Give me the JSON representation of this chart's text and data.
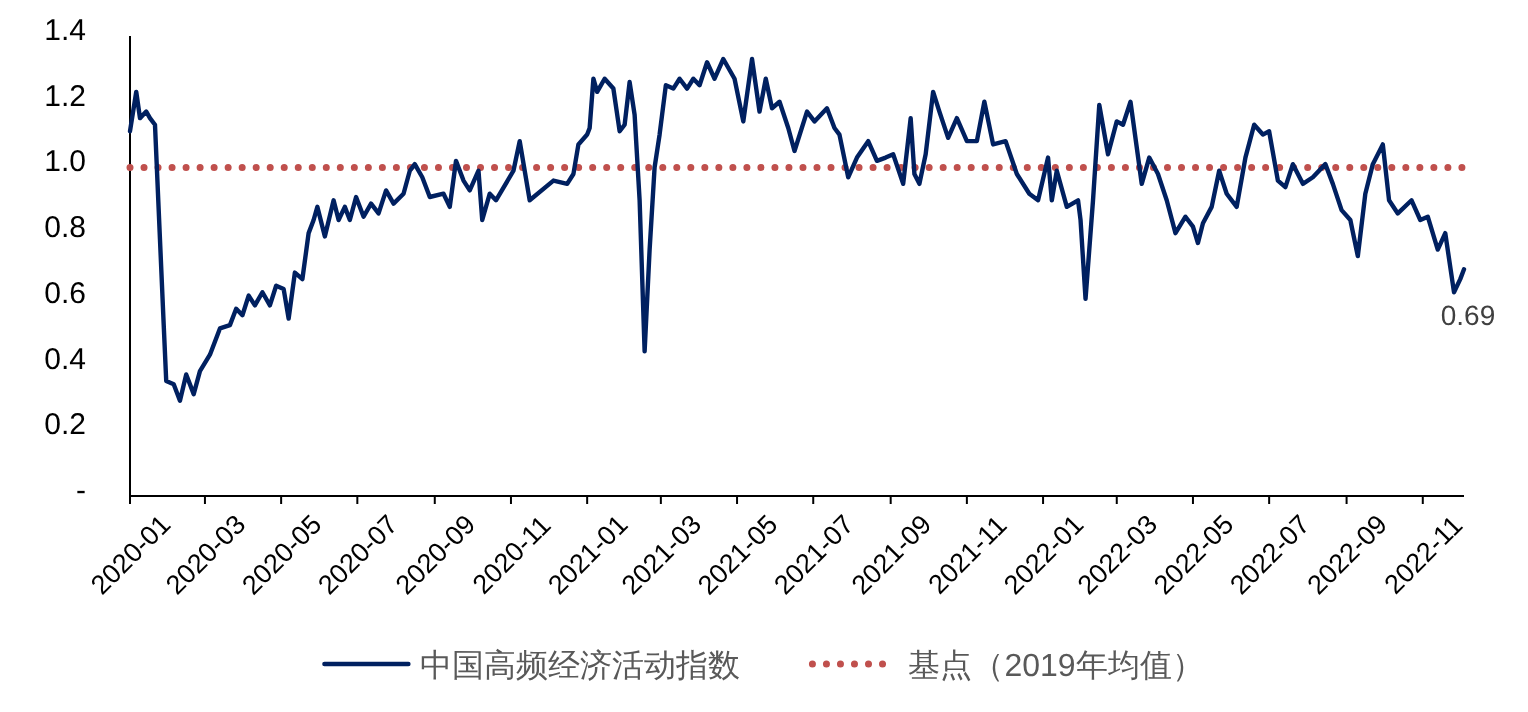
{
  "chart_data": {
    "type": "line",
    "x": [
      "2020-01-01",
      "2020-01-06",
      "2020-01-09",
      "2020-01-14",
      "2020-01-17",
      "2020-01-21",
      "2020-01-25",
      "2020-01-28",
      "2020-01-30",
      "2020-02-05",
      "2020-02-10",
      "2020-02-15",
      "2020-02-21",
      "2020-02-26",
      "2020-03-05",
      "2020-03-13",
      "2020-03-21",
      "2020-03-26",
      "2020-03-31",
      "2020-04-05",
      "2020-04-10",
      "2020-04-16",
      "2020-04-22",
      "2020-04-27",
      "2020-05-03",
      "2020-05-07",
      "2020-05-12",
      "2020-05-18",
      "2020-05-23",
      "2020-05-27",
      "2020-05-30",
      "2020-06-05",
      "2020-06-12",
      "2020-06-16",
      "2020-06-21",
      "2020-06-25",
      "2020-06-30",
      "2020-07-06",
      "2020-07-12",
      "2020-07-18",
      "2020-07-24",
      "2020-07-30",
      "2020-08-07",
      "2020-08-12",
      "2020-08-16",
      "2020-08-22",
      "2020-08-28",
      "2020-09-08",
      "2020-09-13",
      "2020-09-18",
      "2020-09-24",
      "2020-09-29",
      "2020-10-06",
      "2020-10-09",
      "2020-10-15",
      "2020-10-20",
      "2020-11-03",
      "2020-11-08",
      "2020-11-16",
      "2020-12-05",
      "2020-12-16",
      "2020-12-21",
      "2020-12-25",
      "2021-01-01",
      "2021-01-03",
      "2021-01-06",
      "2021-01-09",
      "2021-01-15",
      "2021-01-22",
      "2021-01-27",
      "2021-01-31",
      "2021-02-04",
      "2021-02-08",
      "2021-02-12",
      "2021-02-16",
      "2021-02-20",
      "2021-02-24",
      "2021-02-28",
      "2021-03-05",
      "2021-03-11",
      "2021-03-16",
      "2021-03-22",
      "2021-03-27",
      "2021-04-01",
      "2021-04-07",
      "2021-04-13",
      "2021-04-20",
      "2021-04-29",
      "2021-05-06",
      "2021-05-13",
      "2021-05-19",
      "2021-05-24",
      "2021-05-29",
      "2021-06-04",
      "2021-06-11",
      "2021-06-16",
      "2021-06-26",
      "2021-07-02",
      "2021-07-12",
      "2021-07-18",
      "2021-07-22",
      "2021-07-29",
      "2021-08-05",
      "2021-08-14",
      "2021-08-21",
      "2021-08-28",
      "2021-09-03",
      "2021-09-11",
      "2021-09-17",
      "2021-09-20",
      "2021-09-24",
      "2021-09-29",
      "2021-10-05",
      "2021-10-10",
      "2021-10-17",
      "2021-10-24",
      "2021-11-01",
      "2021-11-09",
      "2021-11-15",
      "2021-11-22",
      "2021-12-02",
      "2021-12-11",
      "2021-12-21",
      "2021-12-28",
      "2022-01-05",
      "2022-01-08",
      "2022-01-12",
      "2022-01-20",
      "2022-01-29",
      "2022-01-31",
      "2022-02-04",
      "2022-02-10",
      "2022-02-15",
      "2022-02-22",
      "2022-03-01",
      "2022-03-06",
      "2022-03-12",
      "2022-03-21",
      "2022-03-27",
      "2022-04-03",
      "2022-04-10",
      "2022-04-17",
      "2022-04-25",
      "2022-05-01",
      "2022-05-05",
      "2022-05-09",
      "2022-05-16",
      "2022-05-22",
      "2022-05-28",
      "2022-06-05",
      "2022-06-12",
      "2022-06-19",
      "2022-06-26",
      "2022-07-01",
      "2022-07-08",
      "2022-07-14",
      "2022-07-20",
      "2022-07-28",
      "2022-08-05",
      "2022-08-15",
      "2022-08-21",
      "2022-08-28",
      "2022-09-04",
      "2022-09-10",
      "2022-09-16",
      "2022-09-22",
      "2022-09-30",
      "2022-10-05",
      "2022-10-12",
      "2022-10-23",
      "2022-10-30",
      "2022-11-05",
      "2022-11-13",
      "2022-11-19",
      "2022-11-26",
      "2022-12-01",
      "2022-12-04"
    ],
    "series": [
      {
        "name": "中国高频经济活动指数",
        "color": "#002060",
        "values": [
          1.11,
          1.23,
          1.15,
          1.17,
          1.15,
          1.13,
          0.78,
          0.52,
          0.35,
          0.34,
          0.29,
          0.37,
          0.31,
          0.38,
          0.43,
          0.51,
          0.52,
          0.57,
          0.55,
          0.61,
          0.58,
          0.62,
          0.58,
          0.64,
          0.63,
          0.54,
          0.68,
          0.66,
          0.8,
          0.84,
          0.88,
          0.79,
          0.9,
          0.84,
          0.88,
          0.84,
          0.91,
          0.85,
          0.89,
          0.86,
          0.93,
          0.89,
          0.92,
          0.99,
          1.01,
          0.97,
          0.91,
          0.92,
          0.88,
          1.02,
          0.96,
          0.93,
          0.99,
          0.84,
          0.92,
          0.9,
          0.99,
          1.08,
          0.9,
          0.96,
          0.95,
          0.98,
          1.07,
          1.1,
          1.12,
          1.27,
          1.23,
          1.27,
          1.24,
          1.11,
          1.13,
          1.26,
          1.16,
          0.9,
          0.44,
          0.75,
          1.0,
          1.1,
          1.25,
          1.24,
          1.27,
          1.24,
          1.27,
          1.25,
          1.32,
          1.27,
          1.33,
          1.27,
          1.14,
          1.33,
          1.17,
          1.27,
          1.18,
          1.2,
          1.12,
          1.05,
          1.17,
          1.14,
          1.18,
          1.12,
          1.1,
          0.97,
          1.03,
          1.08,
          1.02,
          1.03,
          1.04,
          0.95,
          1.15,
          0.98,
          0.95,
          1.04,
          1.23,
          1.17,
          1.09,
          1.15,
          1.08,
          1.08,
          1.2,
          1.07,
          1.08,
          0.98,
          0.92,
          0.9,
          1.03,
          0.9,
          0.99,
          0.88,
          0.9,
          0.84,
          0.6,
          0.9,
          1.19,
          1.04,
          1.14,
          1.13,
          1.2,
          0.95,
          1.03,
          0.98,
          0.9,
          0.8,
          0.85,
          0.82,
          0.77,
          0.83,
          0.88,
          0.99,
          0.92,
          0.88,
          1.03,
          1.13,
          1.1,
          1.11,
          0.96,
          0.94,
          1.01,
          0.95,
          0.97,
          1.01,
          0.95,
          0.87,
          0.84,
          0.73,
          0.92,
          1.01,
          1.07,
          0.9,
          0.86,
          0.9,
          0.84,
          0.85,
          0.75,
          0.8,
          0.62,
          0.66,
          0.69
        ]
      }
    ],
    "xlim": [
      "2020-01-01",
      "2022-12-04"
    ],
    "xticks": [
      "2020-01",
      "2020-03",
      "2020-05",
      "2020-07",
      "2020-09",
      "2020-11",
      "2021-01",
      "2021-03",
      "2021-05",
      "2021-07",
      "2021-09",
      "2021-11",
      "2022-01",
      "2022-03",
      "2022-05",
      "2022-07",
      "2022-09",
      "2022-11"
    ],
    "ylim": [
      0,
      1.4
    ],
    "yticks": [
      {
        "value": 0,
        "label": "-"
      },
      0.2,
      0.4,
      0.6,
      0.8,
      {
        "value": 1,
        "label": "1.0"
      },
      1.2,
      1.4
    ],
    "ref_lines": [
      {
        "axis": "y",
        "value": 1,
        "label": "基点（2019年均值）",
        "color": "#c0504d",
        "line_style": "dotted"
      }
    ],
    "legend": "bottom",
    "annotations": [
      {
        "text": "0.69",
        "x": "2022-12-04",
        "y": 0.69
      }
    ]
  }
}
